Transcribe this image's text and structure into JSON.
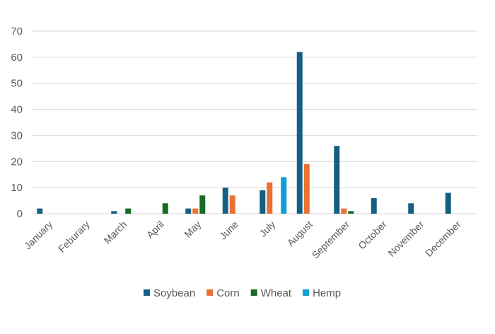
{
  "chart_data": {
    "type": "bar",
    "title": "",
    "xlabel": "",
    "ylabel": "",
    "ylim": [
      0,
      70
    ],
    "yticks": [
      "0",
      "10",
      "20",
      "30",
      "40",
      "50",
      "60",
      "70"
    ],
    "grid": true,
    "legend_position": "bottom",
    "categories": [
      "January",
      "Feburary",
      "March",
      "April",
      "May",
      "June",
      "July",
      "August",
      "September",
      "October",
      "November",
      "December"
    ],
    "series": [
      {
        "name": "Soybean",
        "color": "#156082",
        "values": [
          2,
          0,
          1,
          0,
          2,
          10,
          9,
          62,
          26,
          6,
          4,
          8
        ]
      },
      {
        "name": "Corn",
        "color": "#E97132",
        "values": [
          0,
          0,
          0,
          0,
          2,
          7,
          12,
          19,
          2,
          0,
          0,
          0
        ]
      },
      {
        "name": "Wheat",
        "color": "#196B24",
        "values": [
          0,
          0,
          2,
          4,
          7,
          0,
          0,
          0,
          1,
          0,
          0,
          0
        ]
      },
      {
        "name": "Hemp",
        "color": "#0F9ED5",
        "values": [
          0,
          0,
          0,
          0,
          0,
          0,
          14,
          0,
          0,
          0,
          0,
          0
        ]
      }
    ]
  }
}
